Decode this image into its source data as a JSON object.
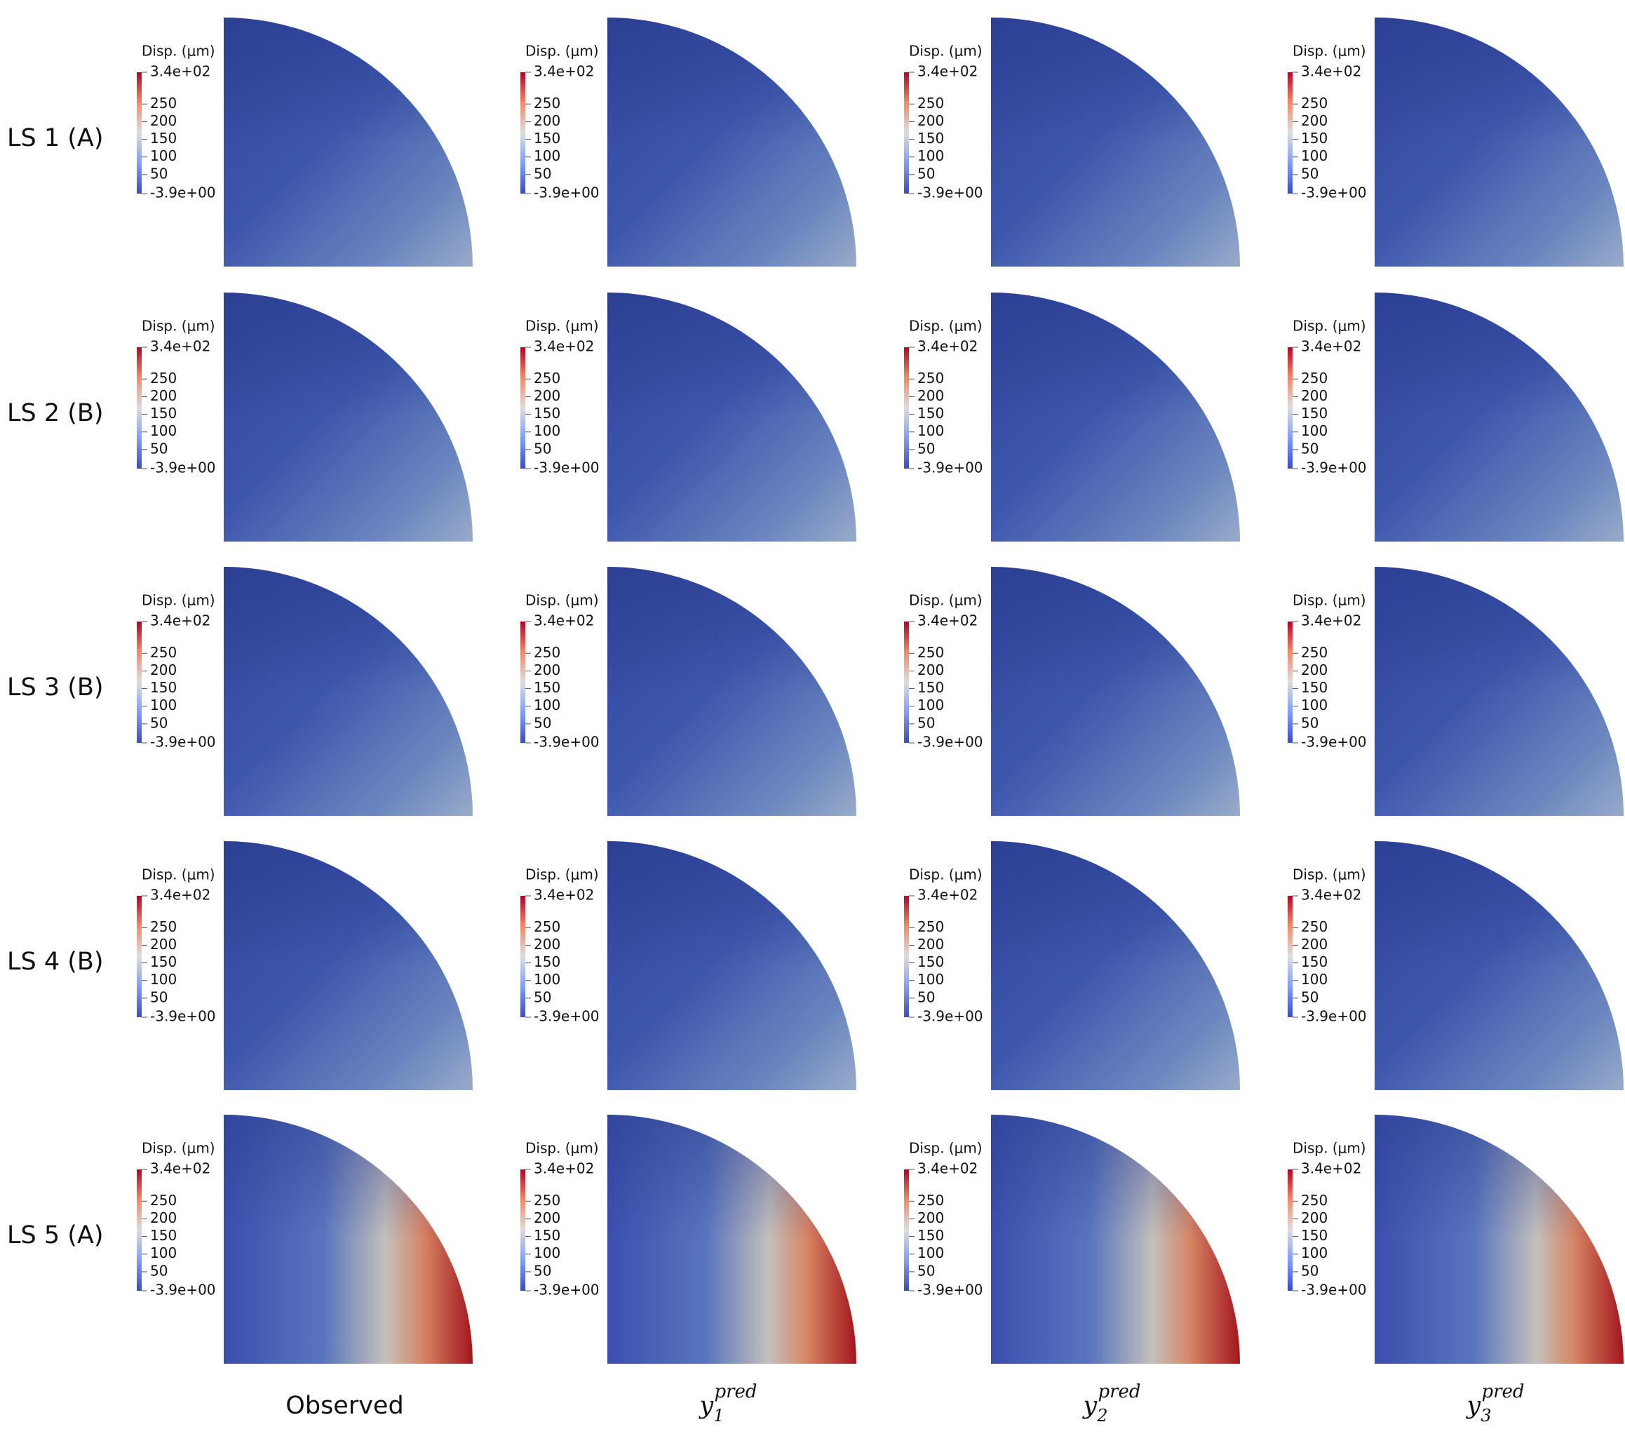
{
  "rows": [
    {
      "label": "LS 1 (A)"
    },
    {
      "label": "LS 2 (B)"
    },
    {
      "label": "LS 3 (B)"
    },
    {
      "label": "LS 4 (B)"
    },
    {
      "label": "LS 5 (A)"
    }
  ],
  "columns": [
    {
      "label": "Observed"
    },
    {
      "base": "y",
      "subscript": "1",
      "superscript": "pred"
    },
    {
      "base": "y",
      "subscript": "2",
      "superscript": "pred"
    },
    {
      "base": "y",
      "subscript": "3",
      "superscript": "pred"
    }
  ],
  "colorbar": {
    "title": "Disp. (μm)",
    "range": [
      -3.9,
      340
    ],
    "ticks": [
      {
        "value": 340,
        "label": "3.4e+02"
      },
      250,
      200,
      150,
      100,
      50,
      {
        "value": -3.9,
        "label": "-3.9e+00"
      }
    ]
  }
}
